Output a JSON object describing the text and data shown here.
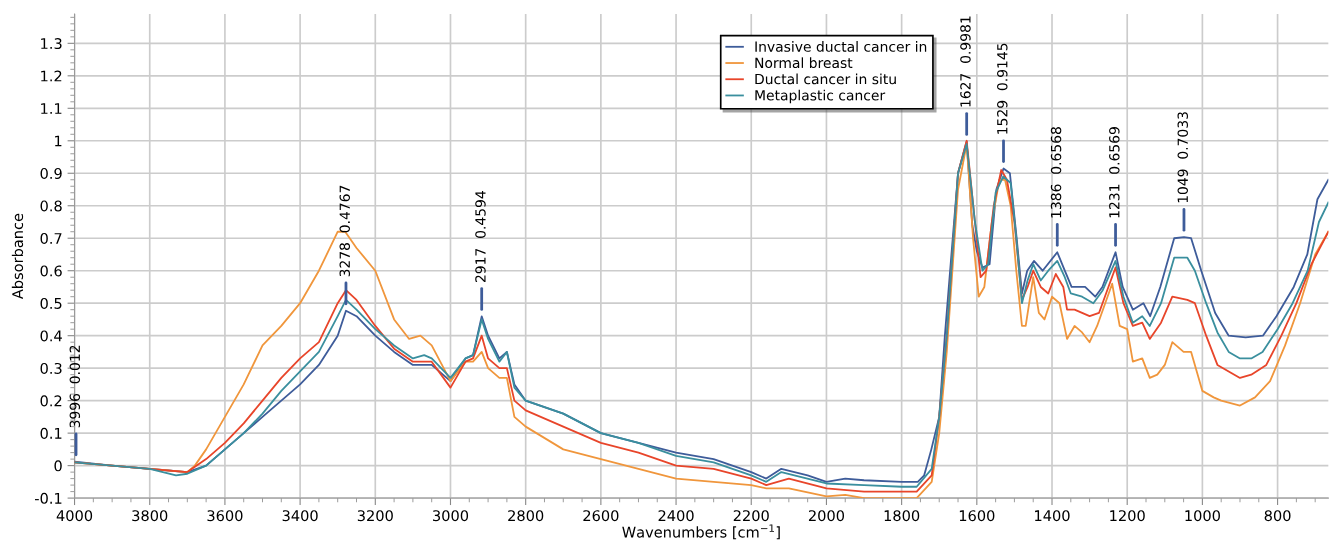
{
  "chart_data": {
    "type": "line",
    "xlabel": "Wavenumbers [cm$^{−1}$]",
    "ylabel": "Absorbance",
    "xlim": [
      4000,
      665
    ],
    "ylim": [
      -0.1,
      1.39
    ],
    "xticks": [
      4000,
      3800,
      3600,
      3400,
      3200,
      3000,
      2800,
      2600,
      2400,
      2200,
      2000,
      1800,
      1600,
      1400,
      1200,
      1000,
      800
    ],
    "yticks": [
      -0.1,
      0,
      0.1,
      0.2,
      0.3,
      0.4,
      0.5,
      0.6,
      0.7,
      0.8,
      0.9,
      1,
      1.1,
      1.2,
      1.3
    ],
    "grid": true,
    "legend": "top",
    "marker": "none",
    "line_style": "solid",
    "series": [
      {
        "name": "Invasive ductal cancer in",
        "color": "#3e5c9a",
        "x": [
          4000,
          3900,
          3800,
          3750,
          3700,
          3650,
          3600,
          3550,
          3500,
          3450,
          3400,
          3350,
          3300,
          3278,
          3250,
          3200,
          3150,
          3100,
          3050,
          3000,
          2960,
          2940,
          2917,
          2900,
          2870,
          2850,
          2830,
          2800,
          2700,
          2600,
          2500,
          2400,
          2300,
          2200,
          2160,
          2120,
          2050,
          2000,
          1950,
          1900,
          1800,
          1757,
          1740,
          1721,
          1700,
          1685,
          1650,
          1627,
          1612,
          1600,
          1585,
          1566,
          1548,
          1529,
          1512,
          1494,
          1480,
          1466,
          1448,
          1425,
          1386,
          1366,
          1348,
          1312,
          1285,
          1266,
          1231,
          1212,
          1185,
          1157,
          1139,
          1112,
          1075,
          1049,
          1030,
          1003,
          966,
          930,
          885,
          839,
          803,
          757,
          721,
          694,
          665
        ],
        "values": [
          0.012,
          0.0,
          -0.01,
          -0.015,
          -0.02,
          0.0,
          0.05,
          0.1,
          0.15,
          0.2,
          0.25,
          0.31,
          0.4,
          0.4767,
          0.46,
          0.4,
          0.35,
          0.31,
          0.31,
          0.26,
          0.33,
          0.34,
          0.4594,
          0.4,
          0.33,
          0.35,
          0.25,
          0.2,
          0.16,
          0.1,
          0.07,
          0.04,
          0.02,
          -0.02,
          -0.04,
          -0.01,
          -0.03,
          -0.05,
          -0.04,
          -0.045,
          -0.05,
          -0.05,
          -0.03,
          0.05,
          0.15,
          0.4,
          0.9,
          0.9981,
          0.74,
          0.66,
          0.61,
          0.62,
          0.85,
          0.9145,
          0.9,
          0.7,
          0.53,
          0.6,
          0.63,
          0.6,
          0.6568,
          0.6,
          0.55,
          0.55,
          0.52,
          0.55,
          0.6569,
          0.55,
          0.48,
          0.5,
          0.46,
          0.55,
          0.7,
          0.7033,
          0.7,
          0.6,
          0.47,
          0.4,
          0.395,
          0.4,
          0.46,
          0.55,
          0.65,
          0.82,
          0.88
        ]
      },
      {
        "name": "Normal breast",
        "color": "#f0963c",
        "x": [
          4000,
          3800,
          3700,
          3680,
          3650,
          3600,
          3550,
          3500,
          3450,
          3400,
          3350,
          3300,
          3280,
          3250,
          3200,
          3150,
          3110,
          3080,
          3050,
          3000,
          2960,
          2940,
          2917,
          2900,
          2870,
          2850,
          2830,
          2800,
          2700,
          2600,
          2500,
          2400,
          2300,
          2200,
          2160,
          2100,
          2000,
          1950,
          1900,
          1800,
          1760,
          1720,
          1700,
          1680,
          1650,
          1627,
          1610,
          1595,
          1580,
          1560,
          1540,
          1525,
          1510,
          1495,
          1480,
          1470,
          1450,
          1435,
          1420,
          1400,
          1380,
          1360,
          1340,
          1320,
          1300,
          1280,
          1240,
          1220,
          1200,
          1185,
          1160,
          1140,
          1120,
          1100,
          1080,
          1050,
          1030,
          1000,
          970,
          950,
          900,
          860,
          820,
          780,
          740,
          700,
          665
        ],
        "values": [
          0.01,
          -0.01,
          -0.02,
          0.0,
          0.05,
          0.15,
          0.25,
          0.37,
          0.43,
          0.5,
          0.6,
          0.72,
          0.72,
          0.67,
          0.6,
          0.45,
          0.39,
          0.4,
          0.37,
          0.26,
          0.32,
          0.32,
          0.35,
          0.3,
          0.27,
          0.27,
          0.15,
          0.12,
          0.05,
          0.02,
          -0.01,
          -0.04,
          -0.05,
          -0.06,
          -0.07,
          -0.07,
          -0.095,
          -0.09,
          -0.1,
          -0.1,
          -0.1,
          -0.05,
          0.1,
          0.35,
          0.85,
          0.99,
          0.7,
          0.52,
          0.55,
          0.75,
          0.88,
          0.88,
          0.8,
          0.6,
          0.43,
          0.43,
          0.58,
          0.47,
          0.45,
          0.52,
          0.5,
          0.39,
          0.43,
          0.41,
          0.38,
          0.43,
          0.56,
          0.43,
          0.42,
          0.32,
          0.33,
          0.27,
          0.28,
          0.31,
          0.38,
          0.35,
          0.35,
          0.23,
          0.21,
          0.2,
          0.185,
          0.21,
          0.26,
          0.37,
          0.5,
          0.65,
          0.72
        ]
      },
      {
        "name": "Ductal cancer in situ",
        "color": "#e8452a",
        "x": [
          4000,
          3800,
          3700,
          3650,
          3600,
          3550,
          3500,
          3450,
          3400,
          3350,
          3300,
          3278,
          3250,
          3200,
          3150,
          3100,
          3050,
          3000,
          2960,
          2940,
          2917,
          2900,
          2870,
          2850,
          2830,
          2800,
          2700,
          2600,
          2500,
          2400,
          2300,
          2200,
          2160,
          2100,
          2000,
          1900,
          1800,
          1760,
          1720,
          1700,
          1680,
          1650,
          1627,
          1605,
          1590,
          1575,
          1555,
          1535,
          1520,
          1500,
          1480,
          1465,
          1450,
          1430,
          1410,
          1390,
          1370,
          1360,
          1340,
          1300,
          1275,
          1250,
          1231,
          1210,
          1185,
          1160,
          1140,
          1110,
          1080,
          1040,
          1020,
          990,
          960,
          930,
          900,
          870,
          830,
          790,
          750,
          710,
          665
        ],
        "values": [
          0.01,
          -0.01,
          -0.02,
          0.02,
          0.07,
          0.13,
          0.2,
          0.27,
          0.33,
          0.38,
          0.5,
          0.54,
          0.51,
          0.43,
          0.36,
          0.32,
          0.32,
          0.24,
          0.32,
          0.33,
          0.4,
          0.33,
          0.3,
          0.3,
          0.2,
          0.17,
          0.12,
          0.07,
          0.04,
          0.0,
          -0.01,
          -0.04,
          -0.06,
          -0.04,
          -0.07,
          -0.08,
          -0.08,
          -0.08,
          -0.03,
          0.15,
          0.4,
          0.9,
          1.0,
          0.75,
          0.58,
          0.6,
          0.8,
          0.91,
          0.88,
          0.75,
          0.51,
          0.55,
          0.6,
          0.55,
          0.53,
          0.59,
          0.55,
          0.48,
          0.48,
          0.46,
          0.47,
          0.55,
          0.61,
          0.5,
          0.43,
          0.44,
          0.39,
          0.44,
          0.52,
          0.51,
          0.5,
          0.4,
          0.31,
          0.29,
          0.27,
          0.28,
          0.31,
          0.4,
          0.5,
          0.62,
          0.72
        ]
      },
      {
        "name": "Metaplastic cancer",
        "color": "#3a8f9e",
        "x": [
          4000,
          3800,
          3730,
          3700,
          3650,
          3600,
          3550,
          3500,
          3450,
          3400,
          3350,
          3300,
          3278,
          3250,
          3200,
          3150,
          3100,
          3070,
          3050,
          3000,
          2960,
          2940,
          2917,
          2900,
          2870,
          2850,
          2830,
          2800,
          2700,
          2600,
          2500,
          2400,
          2300,
          2200,
          2160,
          2120,
          2000,
          1900,
          1800,
          1760,
          1720,
          1700,
          1680,
          1650,
          1627,
          1605,
          1585,
          1570,
          1550,
          1530,
          1510,
          1495,
          1480,
          1465,
          1450,
          1430,
          1410,
          1386,
          1366,
          1350,
          1320,
          1290,
          1265,
          1231,
          1210,
          1185,
          1160,
          1140,
          1110,
          1075,
          1040,
          1020,
          990,
          960,
          930,
          900,
          870,
          840,
          800,
          760,
          720,
          690,
          665
        ],
        "values": [
          0.01,
          -0.01,
          -0.03,
          -0.025,
          0.0,
          0.05,
          0.1,
          0.16,
          0.23,
          0.29,
          0.35,
          0.46,
          0.51,
          0.48,
          0.42,
          0.37,
          0.33,
          0.34,
          0.33,
          0.27,
          0.33,
          0.34,
          0.45,
          0.39,
          0.32,
          0.35,
          0.24,
          0.2,
          0.16,
          0.1,
          0.07,
          0.03,
          0.01,
          -0.03,
          -0.05,
          -0.02,
          -0.055,
          -0.06,
          -0.065,
          -0.065,
          -0.01,
          0.15,
          0.4,
          0.9,
          0.99,
          0.75,
          0.6,
          0.62,
          0.84,
          0.89,
          0.87,
          0.7,
          0.5,
          0.57,
          0.62,
          0.57,
          0.6,
          0.63,
          0.58,
          0.53,
          0.52,
          0.5,
          0.54,
          0.63,
          0.52,
          0.44,
          0.46,
          0.43,
          0.5,
          0.64,
          0.64,
          0.6,
          0.5,
          0.41,
          0.35,
          0.33,
          0.33,
          0.35,
          0.42,
          0.5,
          0.6,
          0.75,
          0.81
        ]
      }
    ],
    "annotations": [
      {
        "text": "3996  0.012",
        "x": 3996,
        "y": 0.012
      },
      {
        "text": "3278  0.4767",
        "x": 3278,
        "y": 0.4767
      },
      {
        "text": "2917  0.4594",
        "x": 2917,
        "y": 0.4594
      },
      {
        "text": "1627  0.9981",
        "x": 1627,
        "y": 0.9981
      },
      {
        "text": "1529  0.9145",
        "x": 1529,
        "y": 0.9145
      },
      {
        "text": "1386  0.6568",
        "x": 1386,
        "y": 0.6568
      },
      {
        "text": "1231  0.6569",
        "x": 1231,
        "y": 0.6569
      },
      {
        "text": "1049  0.7033",
        "x": 1049,
        "y": 0.7033
      }
    ]
  }
}
